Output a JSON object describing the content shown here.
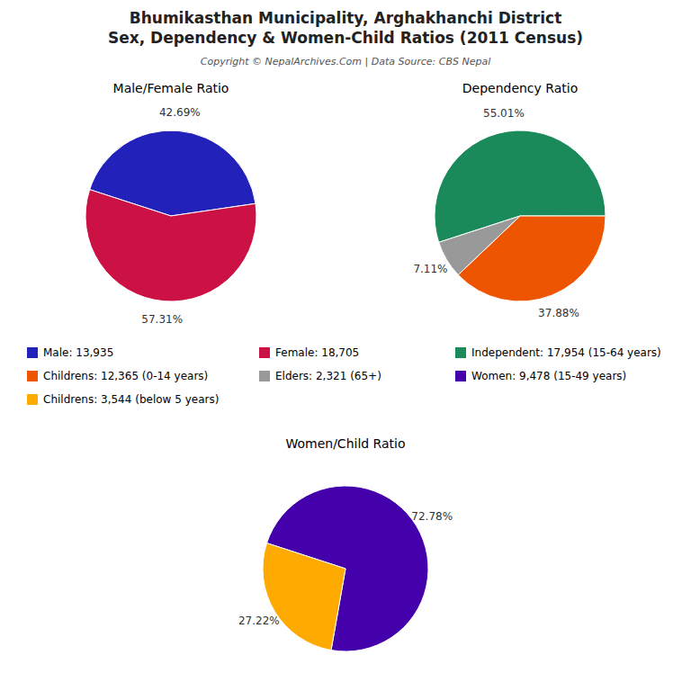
{
  "title": [
    "Bhumikasthan Municipality, Arghakhanchi District",
    "Sex, Dependency & Women-Child Ratios (2011 Census)"
  ],
  "subtitle": "Copyright © NepalArchives.Com | Data Source: CBS Nepal",
  "chart_data": [
    {
      "type": "pie",
      "title": "Male/Female Ratio",
      "categories": [
        "Male: 13,935",
        "Female: 18,705"
      ],
      "values": [
        42.69,
        57.31
      ],
      "value_labels": [
        "42.69%",
        "57.31%"
      ],
      "colors": [
        "#2222bb",
        "#cc1144"
      ],
      "data_labels": true
    },
    {
      "type": "pie",
      "title": "Dependency Ratio",
      "categories": [
        "Independent: 17,954 (15-64 years)",
        "Childrens: 12,365 (0-14 years)",
        "Elders: 2,321 (65+)"
      ],
      "values": [
        55.01,
        37.88,
        7.11
      ],
      "value_labels": [
        "55.01%",
        "37.88%",
        "7.11%"
      ],
      "colors": [
        "#1a8a5a",
        "#ee5500",
        "#999999"
      ],
      "data_labels": true
    },
    {
      "type": "pie",
      "title": "Women/Child Ratio",
      "categories": [
        "Women: 9,478 (15-49 years)",
        "Childrens: 3,544 (below 5 years)"
      ],
      "values": [
        72.78,
        27.22
      ],
      "value_labels": [
        "72.78%",
        "27.22%"
      ],
      "colors": [
        "#4400aa",
        "#ffaa00"
      ],
      "data_labels": true
    }
  ]
}
